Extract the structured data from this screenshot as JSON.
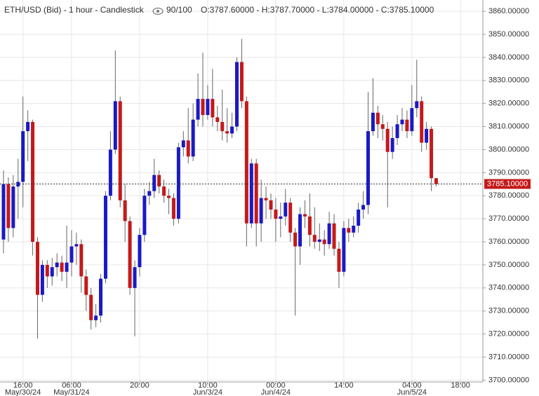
{
  "chart_data": {
    "type": "candlestick",
    "title": "ETH/USD (Bid) - 1 hour - Candlestick",
    "zoom": "90/100",
    "ohlc_text": "O:3787.60000 - H:3787.70000 - L:3784.00000 - C:3785.10000",
    "up_color": "#1a1ac4",
    "down_color": "#c41a1a",
    "grid": true,
    "open": [
      3761,
      3785,
      3766,
      3784,
      3786,
      3808,
      3812,
      3760,
      3737,
      3750,
      3745,
      3749,
      3751,
      3747,
      3751,
      3758,
      3759,
      3745,
      3737,
      3726,
      3728,
      3744,
      3780,
      3800,
      3821,
      3778,
      3769,
      3740,
      3749,
      3763,
      3780,
      3782,
      3789,
      3784,
      3780,
      3779,
      3770,
      3801,
      3804,
      3797,
      3813,
      3822,
      3815,
      3822,
      3814,
      3812,
      3808,
      3807,
      3810,
      3838,
      3821,
      3768,
      3794,
      3768,
      3779,
      3778,
      3774,
      3770,
      3771,
      3777,
      3764,
      3758,
      3772,
      3771,
      3763,
      3760,
      3761,
      3759,
      3768,
      3757,
      3747,
      3766,
      3764,
      3767,
      3774,
      3776,
      3808,
      3816,
      3811,
      3809,
      3799,
      3805,
      3811,
      3813,
      3808,
      3818,
      3821,
      3803,
      3809,
      3787.6
    ],
    "high": [
      3791,
      3788,
      3789,
      3796,
      3823,
      3817,
      3813,
      3762,
      3752,
      3752,
      3753,
      3755,
      3754,
      3767,
      3765,
      3764,
      3761,
      3748,
      3740,
      3733,
      3746,
      3782,
      3808,
      3843,
      3823,
      3785,
      3771,
      3752,
      3766,
      3783,
      3786,
      3796,
      3791,
      3787,
      3783,
      3781,
      3803,
      3808,
      3818,
      3820,
      3833,
      3842,
      3828,
      3835,
      3819,
      3826,
      3818,
      3816,
      3840,
      3848,
      3823,
      3796,
      3796,
      3787,
      3784,
      3781,
      3779,
      3777,
      3783,
      3779,
      3766,
      3775,
      3778,
      3781,
      3775,
      3768,
      3765,
      3773,
      3772,
      3760,
      3769,
      3770,
      3771,
      3777,
      3782,
      3825,
      3831,
      3819,
      3815,
      3812,
      3810,
      3815,
      3818,
      3817,
      3828,
      3839,
      3823,
      3812,
      3810,
      3787.7
    ],
    "low": [
      3755,
      3760,
      3762,
      3770,
      3775,
      3795,
      3754,
      3718,
      3734,
      3740,
      3741,
      3745,
      3743,
      3740,
      3745,
      3750,
      3738,
      3730,
      3722,
      3723,
      3725,
      3742,
      3778,
      3798,
      3775,
      3760,
      3737,
      3719,
      3745,
      3760,
      3776,
      3779,
      3781,
      3777,
      3772,
      3767,
      3768,
      3797,
      3794,
      3795,
      3810,
      3810,
      3813,
      3810,
      3808,
      3804,
      3803,
      3805,
      3808,
      3818,
      3758,
      3766,
      3758,
      3760,
      3770,
      3770,
      3760,
      3762,
      3767,
      3760,
      3728,
      3750,
      3766,
      3758,
      3757,
      3756,
      3754,
      3757,
      3754,
      3740,
      3745,
      3760,
      3762,
      3764,
      3770,
      3772,
      3806,
      3805,
      3804,
      3775,
      3796,
      3802,
      3808,
      3805,
      3806,
      3814,
      3799,
      3800,
      3782,
      3784
    ],
    "close": [
      3785,
      3766,
      3784,
      3786,
      3808,
      3812,
      3760,
      3737,
      3750,
      3745,
      3749,
      3751,
      3747,
      3751,
      3758,
      3759,
      3745,
      3737,
      3726,
      3728,
      3744,
      3780,
      3800,
      3821,
      3778,
      3769,
      3740,
      3749,
      3763,
      3780,
      3782,
      3789,
      3784,
      3780,
      3779,
      3770,
      3801,
      3804,
      3797,
      3813,
      3822,
      3815,
      3822,
      3814,
      3812,
      3808,
      3807,
      3810,
      3838,
      3821,
      3768,
      3794,
      3768,
      3779,
      3778,
      3774,
      3770,
      3771,
      3777,
      3764,
      3758,
      3772,
      3771,
      3763,
      3760,
      3761,
      3759,
      3768,
      3757,
      3747,
      3766,
      3764,
      3767,
      3774,
      3776,
      3808,
      3816,
      3811,
      3809,
      3799,
      3805,
      3811,
      3813,
      3808,
      3818,
      3821,
      3803,
      3809,
      3787.6,
      3785.1
    ],
    "price_line": {
      "value": 3785.1,
      "label": "3785.10000"
    },
    "xlim": [
      -0.72,
      98.6
    ],
    "xticks": [
      {
        "value": 4,
        "label": "16:00",
        "date": "May/30/24"
      },
      {
        "value": 14,
        "label": "06:00",
        "date": "May/31/24"
      },
      {
        "value": 28,
        "label": "20:00"
      },
      {
        "value": 42,
        "label": "10:00",
        "date": "Jun/3/24"
      },
      {
        "value": 56,
        "label": "00:00",
        "date": "Jun/4/24"
      },
      {
        "value": 70,
        "label": "14:00"
      },
      {
        "value": 84,
        "label": "04:00",
        "date": "Jun/5/24"
      },
      {
        "value": 94,
        "label": "18:00"
      }
    ],
    "ylim": [
      3699.2,
      3864.9
    ],
    "yticks": [
      {
        "value": 3700,
        "label": "3700.00000"
      },
      {
        "value": 3710,
        "label": "3710.00000"
      },
      {
        "value": 3720,
        "label": "3720.00000"
      },
      {
        "value": 3730,
        "label": "3730.00000"
      },
      {
        "value": 3740,
        "label": "3740.00000"
      },
      {
        "value": 3750,
        "label": "3750.00000"
      },
      {
        "value": 3760,
        "label": "3760.00000"
      },
      {
        "value": 3770,
        "label": "3770.00000"
      },
      {
        "value": 3780,
        "label": "3780.00000"
      },
      {
        "value": 3790,
        "label": "3790.00000"
      },
      {
        "value": 3800,
        "label": "3800.00000"
      },
      {
        "value": 3810,
        "label": "3810.00000"
      },
      {
        "value": 3820,
        "label": "3820.00000"
      },
      {
        "value": 3830,
        "label": "3830.00000"
      },
      {
        "value": 3840,
        "label": "3840.00000"
      },
      {
        "value": 3850,
        "label": "3850.00000"
      },
      {
        "value": 3860,
        "label": "3860.00000"
      }
    ]
  }
}
